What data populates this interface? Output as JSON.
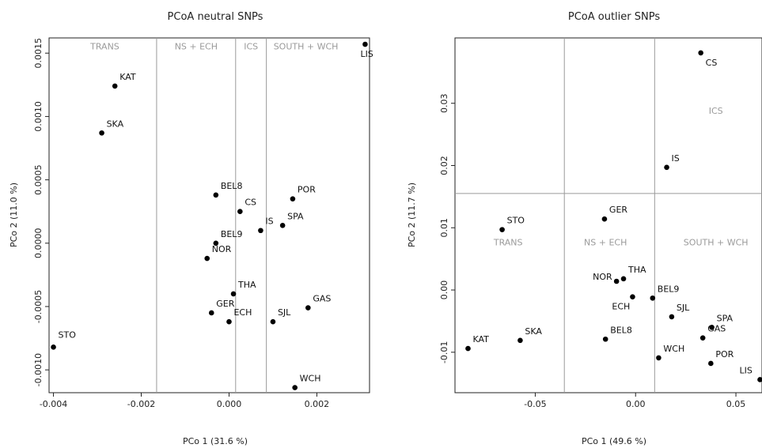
{
  "chart_data": [
    {
      "type": "scatter",
      "title": "PCoA neutral SNPs",
      "xlabel": "PCo 1 (31.6 %)",
      "ylabel": "PCo 2 (11.0 %)",
      "xlim": [
        -0.0041,
        0.0032
      ],
      "ylim": [
        -0.00118,
        0.00162
      ],
      "xticks": [
        -0.004,
        -0.002,
        0.0,
        0.002
      ],
      "xtick_labels": [
        "-0.004",
        "-0.002",
        "0.000",
        "0.002"
      ],
      "yticks": [
        -0.001,
        -0.0005,
        0.0,
        0.0005,
        0.001,
        0.0015
      ],
      "ytick_labels": [
        "-0.0010",
        "-0.0005",
        "0.0000",
        "0.0005",
        "0.0010",
        "0.0015"
      ],
      "vlines": [
        -0.00165,
        0.00015,
        0.00085
      ],
      "hlines": [],
      "regions": [
        {
          "label": "TRANS",
          "x": -0.00283,
          "y": 0.00153
        },
        {
          "label": "NS + ECH",
          "x": -0.00075,
          "y": 0.00153
        },
        {
          "label": "ICS",
          "x": 0.0005,
          "y": 0.00153
        },
        {
          "label": "SOUTH + WCH",
          "x": 0.00175,
          "y": 0.00153
        }
      ],
      "points": [
        {
          "label": "LIS",
          "x": 0.0031,
          "y": 0.00157
        },
        {
          "label": "KAT",
          "x": -0.0026,
          "y": 0.00124
        },
        {
          "label": "SKA",
          "x": -0.0029,
          "y": 0.00087
        },
        {
          "label": "BEL8",
          "x": -0.0003,
          "y": 0.00038
        },
        {
          "label": "POR",
          "x": 0.00145,
          "y": 0.00035
        },
        {
          "label": "CS",
          "x": 0.00025,
          "y": 0.00025
        },
        {
          "label": "SPA",
          "x": 0.00122,
          "y": 0.00014
        },
        {
          "label": "IS",
          "x": 0.00072,
          "y": 0.0001
        },
        {
          "label": "BEL9",
          "x": -0.0003,
          "y": 0.0
        },
        {
          "label": "NOR",
          "x": -0.0005,
          "y": -0.00012
        },
        {
          "label": "THA",
          "x": 0.0001,
          "y": -0.0004
        },
        {
          "label": "GAS",
          "x": 0.0018,
          "y": -0.00051
        },
        {
          "label": "GER",
          "x": -0.0004,
          "y": -0.00055
        },
        {
          "label": "ECH",
          "x": 0.0,
          "y": -0.00062
        },
        {
          "label": "SJL",
          "x": 0.001,
          "y": -0.00062
        },
        {
          "label": "STO",
          "x": -0.004,
          "y": -0.00082
        },
        {
          "label": "WCH",
          "x": 0.0015,
          "y": -0.00114
        }
      ]
    },
    {
      "type": "scatter",
      "title": "PCoA outlier SNPs",
      "xlabel": "PCo 1 (49.6 %)",
      "ylabel": "PCo 2 (11.7 %)",
      "xlim": [
        -0.09,
        0.063
      ],
      "ylim": [
        -0.0165,
        0.0405
      ],
      "xticks": [
        -0.05,
        0.0,
        0.05
      ],
      "xtick_labels": [
        "-0.05",
        "0.00",
        "0.05"
      ],
      "yticks": [
        -0.01,
        0.0,
        0.01,
        0.02,
        0.03
      ],
      "ytick_labels": [
        "-0.01",
        "0.00",
        "0.01",
        "0.02",
        "0.03"
      ],
      "vlines": [
        -0.0355,
        0.0095
      ],
      "hlines": [
        0.0155
      ],
      "regions": [
        {
          "label": "TRANS",
          "x": -0.0635,
          "y": 0.0072
        },
        {
          "label": "NS + ECH",
          "x": -0.015,
          "y": 0.0072
        },
        {
          "label": "ICS",
          "x": 0.04,
          "y": 0.0283
        },
        {
          "label": "SOUTH + WCH",
          "x": 0.04,
          "y": 0.0072
        }
      ],
      "points": [
        {
          "label": "CS",
          "x": 0.0325,
          "y": 0.0381
        },
        {
          "label": "IS",
          "x": 0.0155,
          "y": 0.0197
        },
        {
          "label": "GER",
          "x": -0.0155,
          "y": 0.0114
        },
        {
          "label": "STO",
          "x": -0.0665,
          "y": 0.0097
        },
        {
          "label": "THA",
          "x": -0.006,
          "y": 0.0018
        },
        {
          "label": "NOR",
          "x": -0.0095,
          "y": 0.0014
        },
        {
          "label": "ECH",
          "x": -0.0015,
          "y": -0.0011
        },
        {
          "label": "BEL9",
          "x": 0.0085,
          "y": -0.0013
        },
        {
          "label": "SJL",
          "x": 0.018,
          "y": -0.0043
        },
        {
          "label": "SPA",
          "x": 0.038,
          "y": -0.006
        },
        {
          "label": "GAS",
          "x": 0.0335,
          "y": -0.0077
        },
        {
          "label": "BEL8",
          "x": -0.015,
          "y": -0.0079
        },
        {
          "label": "SKA",
          "x": -0.0575,
          "y": -0.0081
        },
        {
          "label": "KAT",
          "x": -0.0835,
          "y": -0.0094
        },
        {
          "label": "WCH",
          "x": 0.0115,
          "y": -0.0109
        },
        {
          "label": "POR",
          "x": 0.0375,
          "y": -0.0118
        },
        {
          "label": "LIS",
          "x": 0.062,
          "y": -0.0144
        }
      ]
    }
  ]
}
